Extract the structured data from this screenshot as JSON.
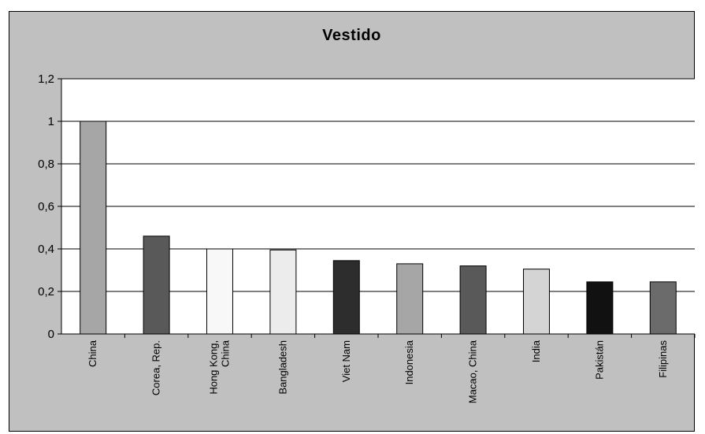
{
  "chart_data": {
    "type": "bar",
    "title": "Vestido",
    "xlabel": "",
    "ylabel": "",
    "ylim": [
      0,
      1.2
    ],
    "yticks": [
      "0",
      "0,2",
      "0,4",
      "0,6",
      "0,8",
      "1",
      "1,2"
    ],
    "categories": [
      "China",
      "Corea, Rep.",
      "Hong Kong, China",
      "Bangladesh",
      "Viet Nam",
      "Indonesia",
      "Macao, China",
      "India",
      "Pakistán",
      "Filipinas"
    ],
    "category_lines": [
      [
        "China"
      ],
      [
        "Corea, Rep."
      ],
      [
        "Hong Kong,",
        "China"
      ],
      [
        "Bangladesh"
      ],
      [
        "Viet Nam"
      ],
      [
        "Indonesia"
      ],
      [
        "Macao, China"
      ],
      [
        "India"
      ],
      [
        "Pakistán"
      ],
      [
        "Filipinas"
      ]
    ],
    "values": [
      1.0,
      0.46,
      0.4,
      0.395,
      0.345,
      0.33,
      0.32,
      0.305,
      0.245,
      0.245
    ],
    "bar_colors": [
      "#a6a6a6",
      "#595959",
      "#f8f8f8",
      "#ececec",
      "#2d2d2d",
      "#a6a6a6",
      "#595959",
      "#d4d4d4",
      "#111111",
      "#6b6b6b"
    ],
    "grid": true,
    "legend": "none"
  },
  "colors": {
    "chart_background": "#c0c0c0",
    "plot_background": "#ffffff",
    "gridline": "#000000"
  }
}
